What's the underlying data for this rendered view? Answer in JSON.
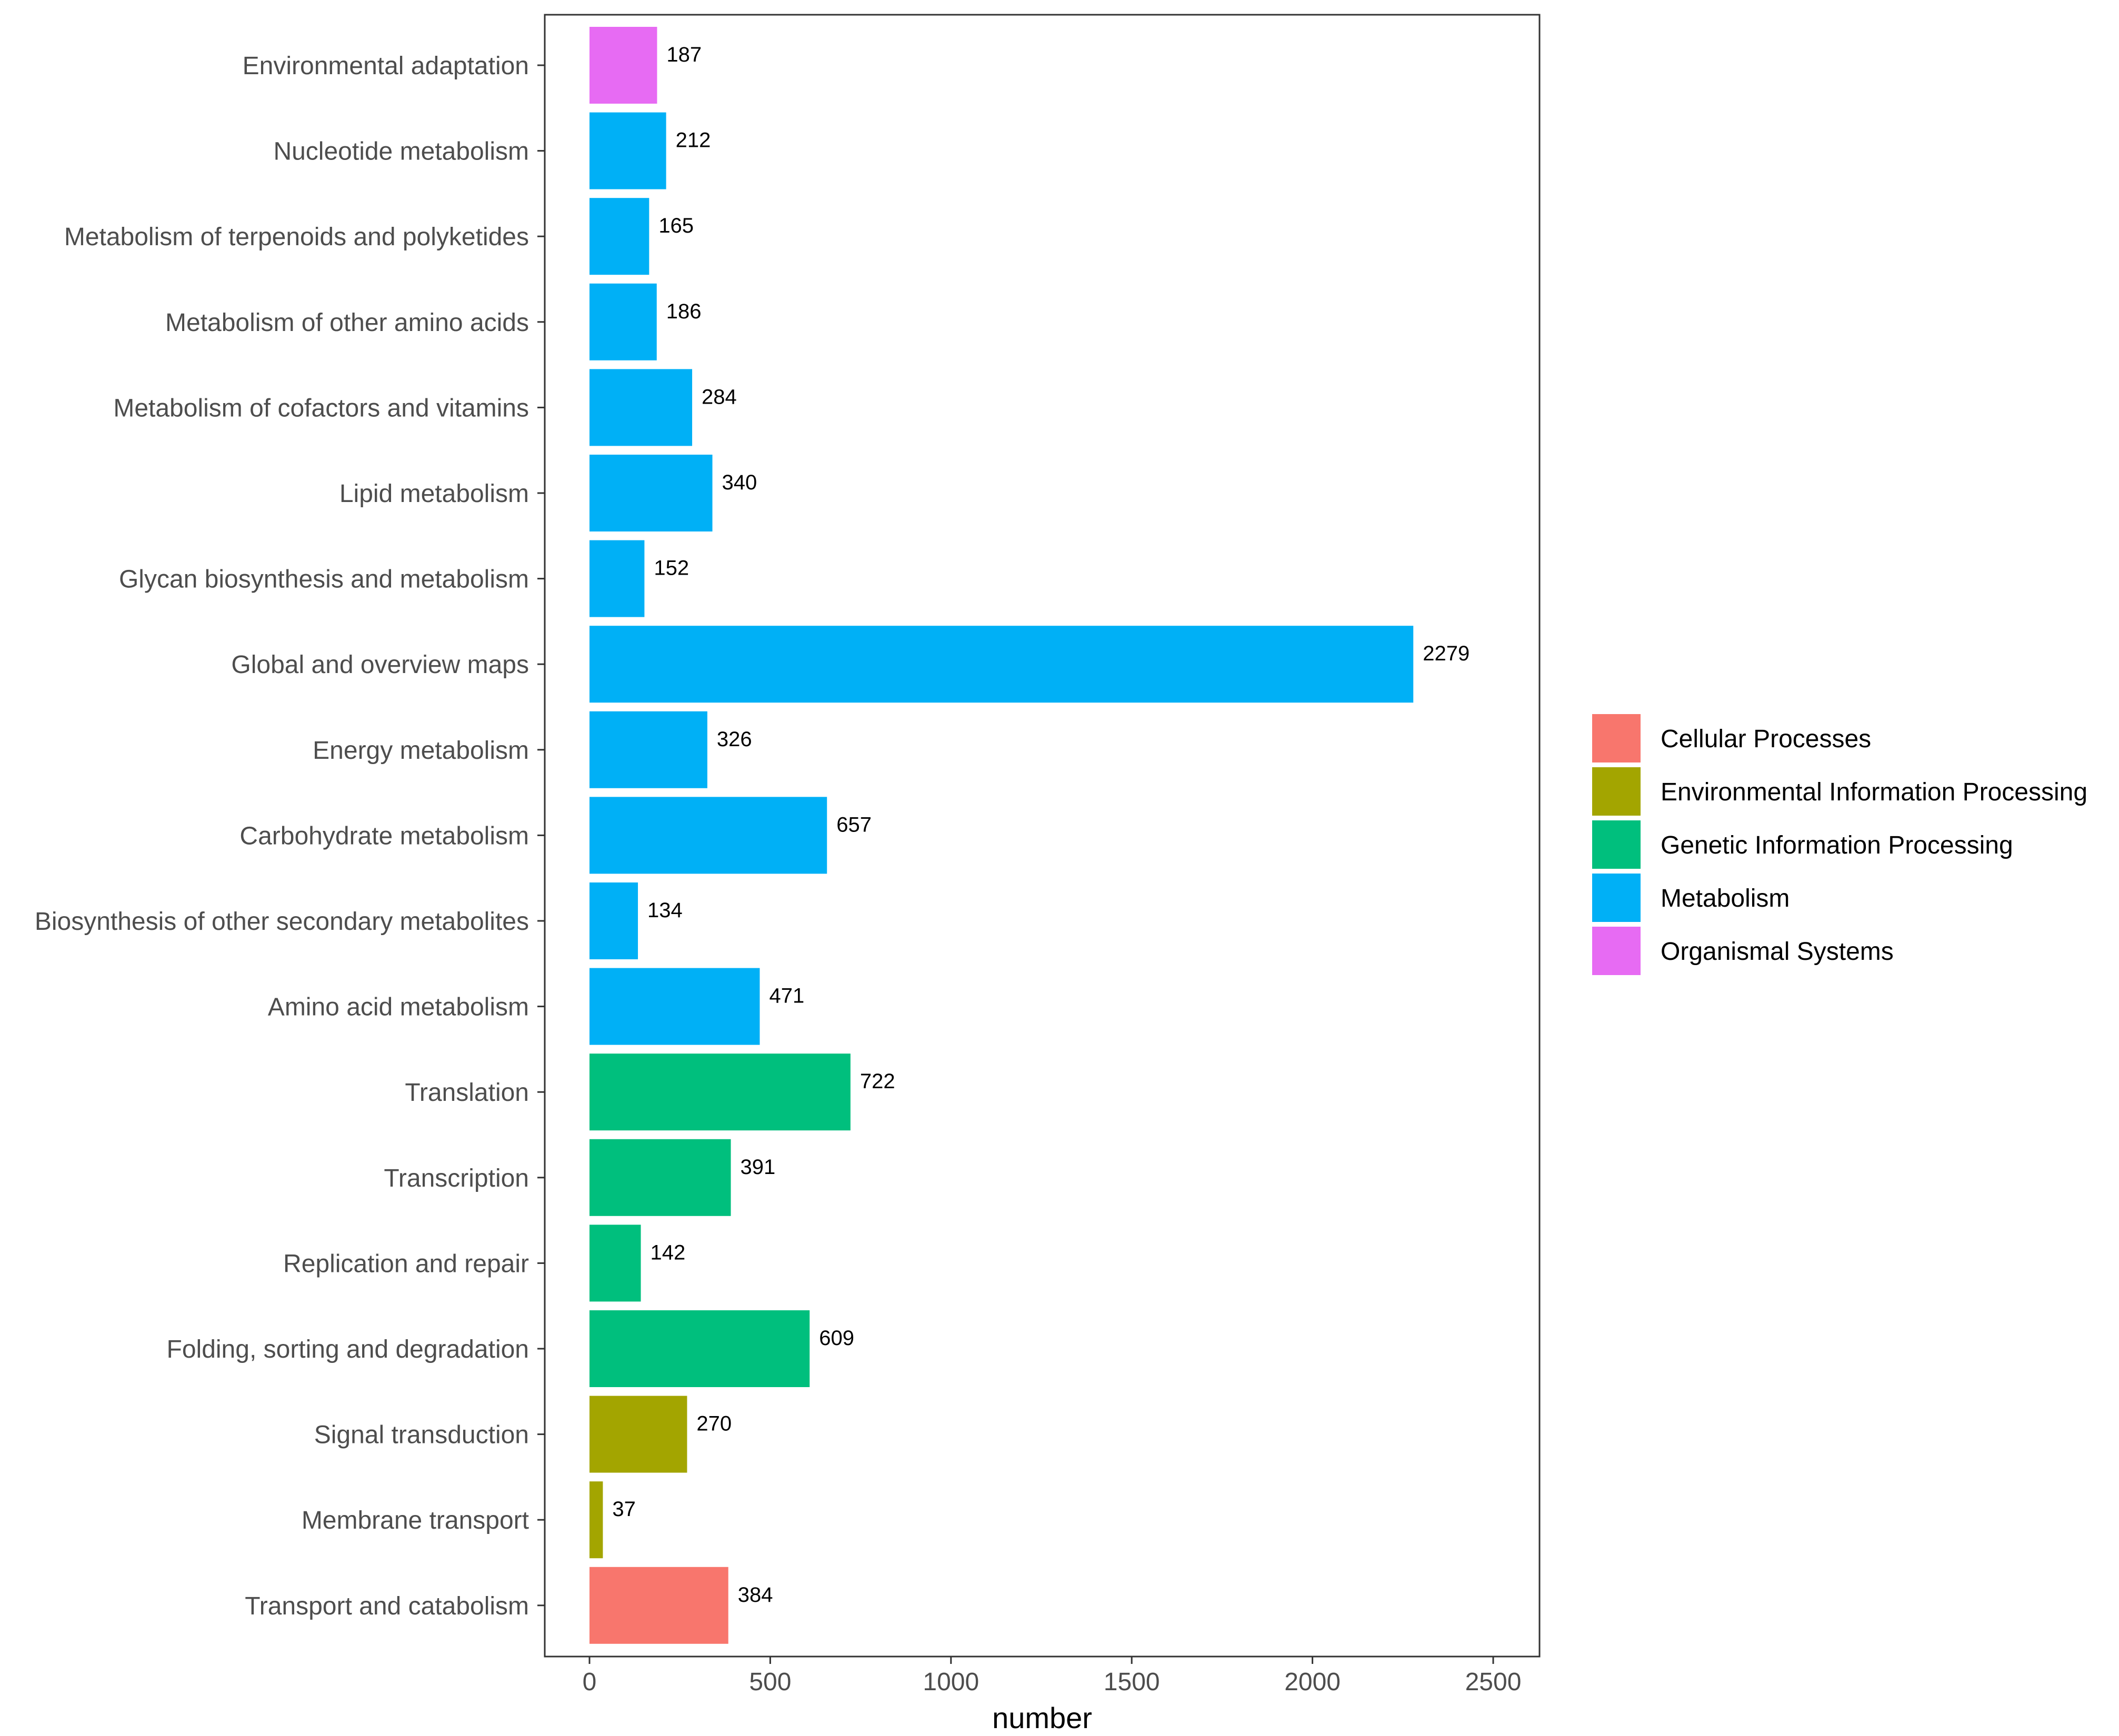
{
  "chart_data": {
    "type": "bar",
    "orientation": "horizontal",
    "title": "",
    "xlabel": "number",
    "ylabel": "",
    "xlim": [
      0,
      2500
    ],
    "xticks": [
      0,
      500,
      1000,
      1500,
      2000,
      2500
    ],
    "xtick_labels": [
      "0",
      "500",
      "1000",
      "1500",
      "2000",
      "2500"
    ],
    "grid": false,
    "legend_position": "right",
    "categories": [
      "Environmental adaptation",
      "Nucleotide metabolism",
      "Metabolism of terpenoids and polyketides",
      "Metabolism of other amino acids",
      "Metabolism of cofactors and vitamins",
      "Lipid metabolism",
      "Glycan biosynthesis and metabolism",
      "Global and overview maps",
      "Energy metabolism",
      "Carbohydrate metabolism",
      "Biosynthesis of other secondary metabolites",
      "Amino acid metabolism",
      "Translation",
      "Transcription",
      "Replication and repair",
      "Folding, sorting and degradation",
      "Signal transduction",
      "Membrane transport",
      "Transport and catabolism"
    ],
    "values": [
      187,
      212,
      165,
      186,
      284,
      340,
      152,
      2279,
      326,
      657,
      134,
      471,
      722,
      391,
      142,
      609,
      270,
      37,
      384
    ],
    "groups": [
      "Organismal Systems",
      "Metabolism",
      "Metabolism",
      "Metabolism",
      "Metabolism",
      "Metabolism",
      "Metabolism",
      "Metabolism",
      "Metabolism",
      "Metabolism",
      "Metabolism",
      "Metabolism",
      "Genetic Information Processing",
      "Genetic Information Processing",
      "Genetic Information Processing",
      "Genetic Information Processing",
      "Environmental Information Processing",
      "Environmental Information Processing",
      "Cellular Processes"
    ],
    "legend": [
      {
        "name": "Cellular Processes",
        "color": "#F8766D"
      },
      {
        "name": "Environmental Information Processing",
        "color": "#A3A500"
      },
      {
        "name": "Genetic Information Processing",
        "color": "#00BF7D"
      },
      {
        "name": "Metabolism",
        "color": "#00B0F6"
      },
      {
        "name": "Organismal Systems",
        "color": "#E76BF3"
      }
    ]
  }
}
